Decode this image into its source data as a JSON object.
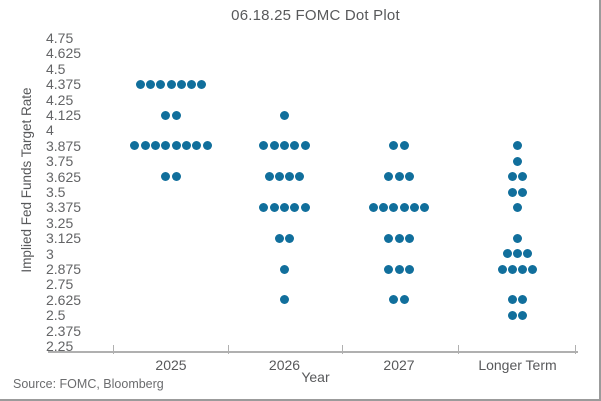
{
  "chart_data": {
    "type": "scatter",
    "subtype": "dot-plot",
    "title": "06.18.25 FOMC Dot Plot",
    "xlabel": "Year",
    "ylabel": "Implied Fed Funds Target Rate",
    "source": "Source: FOMC, Bloomberg",
    "categories": [
      "2025",
      "2026",
      "2027",
      "Longer Term"
    ],
    "y_tick_labels": [
      "4.75",
      "4.625",
      "4.5",
      "4.375",
      "4.25",
      "4.125",
      "4",
      "3.875",
      "3.75",
      "3.625",
      "3.5",
      "3.375",
      "3.25",
      "3.125",
      "3",
      "2.875",
      "2.75",
      "2.625",
      "2.5",
      "2.375",
      "2.25"
    ],
    "ylim": [
      2.25,
      4.75
    ],
    "y_step": 0.125,
    "grid": false,
    "legend": "none",
    "dot_color": "#116f9c",
    "series": [
      {
        "category": "2025",
        "dots": {
          "4.375": 7,
          "4.125": 2,
          "3.875": 8,
          "3.625": 2
        }
      },
      {
        "category": "2026",
        "dots": {
          "4.125": 1,
          "3.875": 5,
          "3.625": 4,
          "3.375": 5,
          "3.125": 2,
          "2.875": 1,
          "2.625": 1
        }
      },
      {
        "category": "2027",
        "dots": {
          "3.875": 2,
          "3.625": 3,
          "3.375": 6,
          "3.125": 3,
          "2.875": 3,
          "2.625": 2
        }
      },
      {
        "category": "Longer Term",
        "dots": {
          "3.875": 1,
          "3.75": 1,
          "3.625": 2,
          "3.5": 2,
          "3.375": 1,
          "3.125": 1,
          "3": 3,
          "2.875": 4,
          "2.625": 2,
          "2.5": 2
        }
      }
    ]
  }
}
